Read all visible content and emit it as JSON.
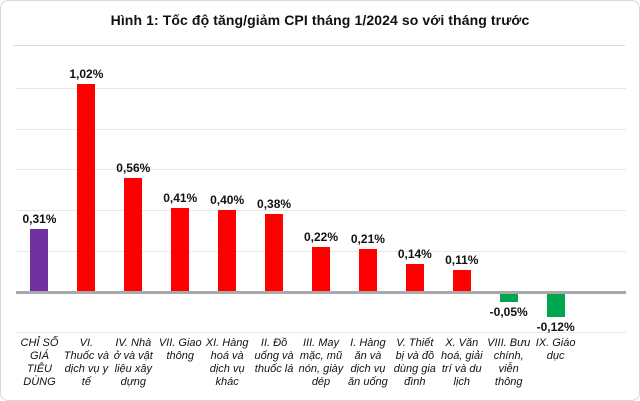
{
  "header": {
    "title": "Hình 1: Tốc độ tăng/giảm CPI tháng 1/2024 so với tháng trước"
  },
  "colors": {
    "overall_cpi_bar": "#7030A0",
    "increase_bar": "#FF0000",
    "decrease_bar": "#00A550",
    "zero_axis": "#A9A9A9",
    "gridline": "#E8E8E8",
    "card_border": "#D9D9D9",
    "text": "#111111"
  },
  "chart_data": {
    "type": "bar",
    "title": "Hình 1: Tốc độ tăng/giảm CPI tháng 1/2024 so với tháng trước",
    "unit": "%",
    "xlabel": "",
    "ylabel": "",
    "grid": true,
    "legend": false,
    "ylim": [
      -0.2,
      1.17
    ],
    "gridlines": [
      1.0,
      0.8,
      0.6,
      0.4,
      0.2,
      -0.2
    ],
    "baseline": 0,
    "categories": [
      "CHỈ SỐ GIÁ TIÊU DÙNG",
      "VI. Thuốc và dịch vụ y tế",
      "IV. Nhà ở và vật liệu xây dựng",
      "VII. Giao thông",
      "XI. Hàng hoá và dịch vụ khác",
      "II. Đồ uống và thuốc lá",
      "III. May mặc, mũ nón, giày dép",
      "I. Hàng ăn và dịch vụ ăn uống",
      "V. Thiết bị và đồ dùng gia đình",
      "X. Văn hoá, giải trí và du lịch",
      "VIII. Bưu chính, viễn thông",
      "IX. Giáo dục"
    ],
    "tick_labels": [
      "CHỈ SỐ\nGIÁ\nTIÊU\nDÙNG",
      "VI.\nThuốc và\ndịch vụ y\ntế",
      "IV. Nhà\nở và vật\nliệu xây\ndựng",
      "VII. Giao\nthông",
      "XI. Hàng\nhoá và\ndịch vụ\nkhác",
      "II. Đồ\nuống và\nthuốc lá",
      "III. May\nmặc, mũ\nnón, giày\ndép",
      "I. Hàng\năn và\ndịch vụ\năn uống",
      "V. Thiết\nbị và đồ\ndùng gia\nđình",
      "X. Văn\nhoá, giải\ntrí và du\nlịch",
      "VIII. Bưu\nchính,\nviễn\nthông",
      "IX. Giáo\ndục"
    ],
    "values": [
      0.31,
      1.02,
      0.56,
      0.41,
      0.4,
      0.38,
      0.22,
      0.21,
      0.14,
      0.11,
      -0.05,
      -0.12
    ],
    "value_labels": [
      "0,31%",
      "1,02%",
      "0,56%",
      "0,41%",
      "0,40%",
      "0,38%",
      "0,22%",
      "0,21%",
      "0,14%",
      "0,11%",
      "-0,05%",
      "-0,12%"
    ],
    "bar_colors": [
      "#7030A0",
      "#FF0000",
      "#FF0000",
      "#FF0000",
      "#FF0000",
      "#FF0000",
      "#FF0000",
      "#FF0000",
      "#FF0000",
      "#FF0000",
      "#00A550",
      "#00A550"
    ],
    "slots_total": 13
  }
}
